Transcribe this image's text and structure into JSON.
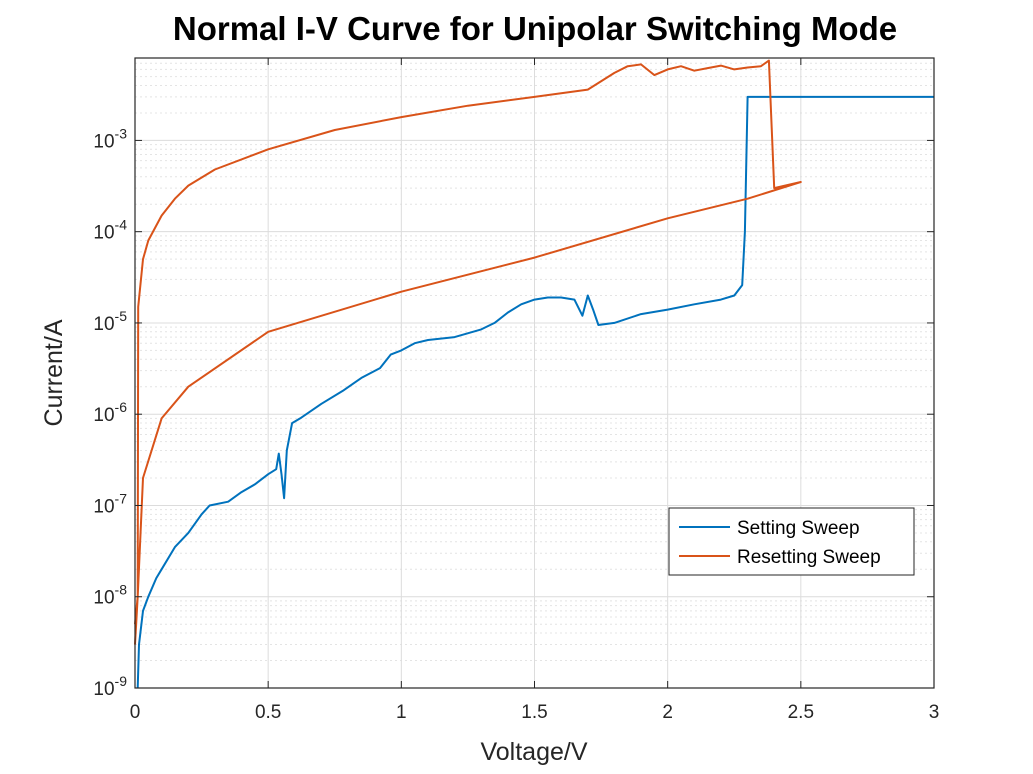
{
  "chart_data": {
    "type": "line",
    "title": "Normal I-V Curve for Unipolar Switching Mode",
    "xlabel": "Voltage/V",
    "ylabel": "Current/A",
    "xlim": [
      0,
      3
    ],
    "ylim": [
      1e-09,
      0.008
    ],
    "yscale": "log",
    "grid": true,
    "minor_grid": true,
    "legend_position": "lower-right",
    "x_ticks": [
      0,
      0.5,
      1,
      1.5,
      2,
      2.5,
      3
    ],
    "x_tick_labels": [
      "0",
      "0.5",
      "1",
      "1.5",
      "2",
      "2.5",
      "3"
    ],
    "y_ticks": [
      1e-09,
      1e-08,
      1e-07,
      1e-06,
      1e-05,
      0.0001,
      0.001
    ],
    "y_tick_labels": [
      {
        "base": "10",
        "exp": "-9"
      },
      {
        "base": "10",
        "exp": "-8"
      },
      {
        "base": "10",
        "exp": "-7"
      },
      {
        "base": "10",
        "exp": "-6"
      },
      {
        "base": "10",
        "exp": "-5"
      },
      {
        "base": "10",
        "exp": "-4"
      },
      {
        "base": "10",
        "exp": "-3"
      }
    ],
    "series": [
      {
        "name": "Setting Sweep",
        "color": "#0072BD",
        "points": [
          [
            0.01,
            1e-09
          ],
          [
            0.015,
            3e-09
          ],
          [
            0.03,
            7e-09
          ],
          [
            0.05,
            1e-08
          ],
          [
            0.08,
            1.6e-08
          ],
          [
            0.1,
            2e-08
          ],
          [
            0.15,
            3.5e-08
          ],
          [
            0.2,
            5e-08
          ],
          [
            0.25,
            8e-08
          ],
          [
            0.28,
            1e-07
          ],
          [
            0.35,
            1.1e-07
          ],
          [
            0.4,
            1.4e-07
          ],
          [
            0.45,
            1.7e-07
          ],
          [
            0.5,
            2.2e-07
          ],
          [
            0.53,
            2.5e-07
          ],
          [
            0.54,
            3.7e-07
          ],
          [
            0.55,
            2.2e-07
          ],
          [
            0.56,
            1.2e-07
          ],
          [
            0.57,
            4e-07
          ],
          [
            0.59,
            8e-07
          ],
          [
            0.62,
            9e-07
          ],
          [
            0.7,
            1.3e-06
          ],
          [
            0.78,
            1.8e-06
          ],
          [
            0.85,
            2.5e-06
          ],
          [
            0.92,
            3.2e-06
          ],
          [
            0.96,
            4.5e-06
          ],
          [
            1.0,
            5e-06
          ],
          [
            1.05,
            6e-06
          ],
          [
            1.1,
            6.5e-06
          ],
          [
            1.2,
            7e-06
          ],
          [
            1.3,
            8.5e-06
          ],
          [
            1.35,
            1e-05
          ],
          [
            1.4,
            1.3e-05
          ],
          [
            1.45,
            1.6e-05
          ],
          [
            1.5,
            1.8e-05
          ],
          [
            1.55,
            1.9e-05
          ],
          [
            1.6,
            1.9e-05
          ],
          [
            1.65,
            1.8e-05
          ],
          [
            1.68,
            1.2e-05
          ],
          [
            1.7,
            2e-05
          ],
          [
            1.72,
            1.4e-05
          ],
          [
            1.74,
            9.5e-06
          ],
          [
            1.8,
            1e-05
          ],
          [
            1.9,
            1.25e-05
          ],
          [
            2.0,
            1.4e-05
          ],
          [
            2.1,
            1.6e-05
          ],
          [
            2.2,
            1.8e-05
          ],
          [
            2.25,
            2e-05
          ],
          [
            2.28,
            2.6e-05
          ],
          [
            2.29,
            0.0001
          ],
          [
            2.3,
            0.003
          ],
          [
            3.0,
            0.003
          ]
        ]
      },
      {
        "name": "Resetting Sweep",
        "color": "#D95319",
        "points": [
          [
            0.0,
            5e-09
          ],
          [
            0.01,
            1e-08
          ],
          [
            0.012,
            1.5e-05
          ],
          [
            0.03,
            5e-05
          ],
          [
            0.05,
            8e-05
          ],
          [
            0.1,
            0.00015
          ],
          [
            0.15,
            0.00023
          ],
          [
            0.2,
            0.00032
          ],
          [
            0.3,
            0.00048
          ],
          [
            0.5,
            0.0008
          ],
          [
            0.75,
            0.0013
          ],
          [
            1.0,
            0.0018
          ],
          [
            1.25,
            0.0024
          ],
          [
            1.5,
            0.003
          ],
          [
            1.7,
            0.0036
          ],
          [
            1.8,
            0.0055
          ],
          [
            1.85,
            0.0065
          ],
          [
            1.9,
            0.0068
          ],
          [
            1.95,
            0.0052
          ],
          [
            2.0,
            0.006
          ],
          [
            2.05,
            0.0065
          ],
          [
            2.1,
            0.0058
          ],
          [
            2.15,
            0.0062
          ],
          [
            2.2,
            0.0066
          ],
          [
            2.25,
            0.006
          ],
          [
            2.3,
            0.0063
          ],
          [
            2.35,
            0.0065
          ],
          [
            2.38,
            0.0075
          ],
          [
            2.4,
            0.0003
          ],
          [
            2.5,
            0.00035
          ],
          [
            2.3,
            0.00023
          ],
          [
            2.0,
            0.00014
          ],
          [
            1.5,
            5.2e-05
          ],
          [
            1.0,
            2.2e-05
          ],
          [
            0.5,
            8e-06
          ],
          [
            0.2,
            2e-06
          ],
          [
            0.1,
            9e-07
          ],
          [
            0.03,
            2e-07
          ],
          [
            0.01,
            1e-08
          ],
          [
            0.0,
            3e-09
          ]
        ]
      }
    ]
  }
}
